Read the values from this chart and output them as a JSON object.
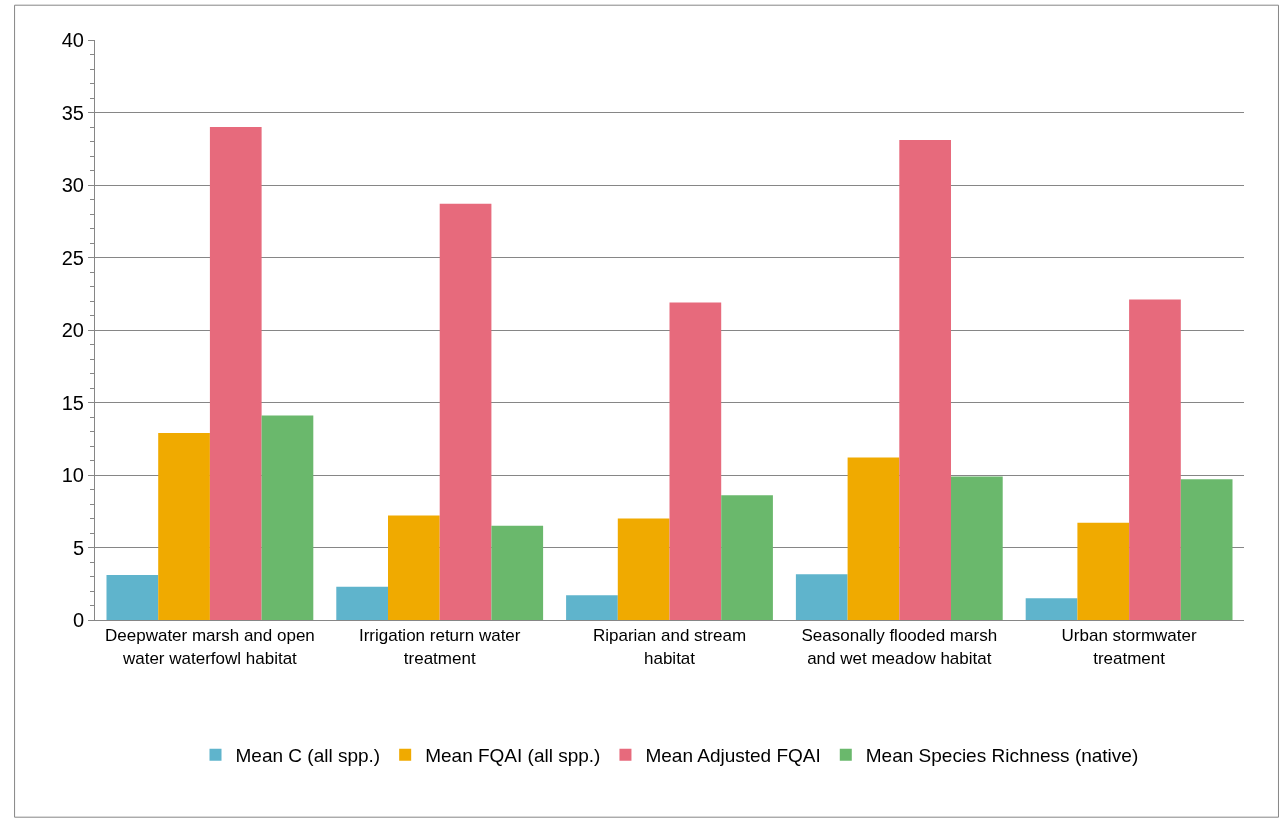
{
  "chart_data": {
    "type": "bar",
    "categories": [
      "Deepwater marsh and open water waterfowl habitat",
      "Irrigation return water treatment",
      "Riparian and stream habitat",
      "Seasonally flooded marsh and wet meadow habitat",
      "Urban stormwater treatment"
    ],
    "series": [
      {
        "name": "Mean C (all spp.)",
        "color": "#5fb4cc",
        "values": [
          3.1,
          2.3,
          1.7,
          3.15,
          1.5
        ]
      },
      {
        "name": "Mean FQAI (all spp.)",
        "color": "#f0aa00",
        "values": [
          12.9,
          7.2,
          7.0,
          11.2,
          6.7
        ]
      },
      {
        "name": "Mean Adjusted FQAI",
        "color": "#e76a7c",
        "values": [
          34.0,
          28.7,
          21.9,
          33.1,
          22.1
        ]
      },
      {
        "name": "Mean Species Richness (native)",
        "color": "#6ab86c",
        "values": [
          14.1,
          6.5,
          8.6,
          9.9,
          9.7
        ]
      }
    ],
    "ylim": [
      0,
      40
    ],
    "yticks": [
      0,
      5,
      10,
      15,
      20,
      25,
      30,
      35,
      40
    ],
    "grid": "y",
    "legend": "bottom"
  }
}
